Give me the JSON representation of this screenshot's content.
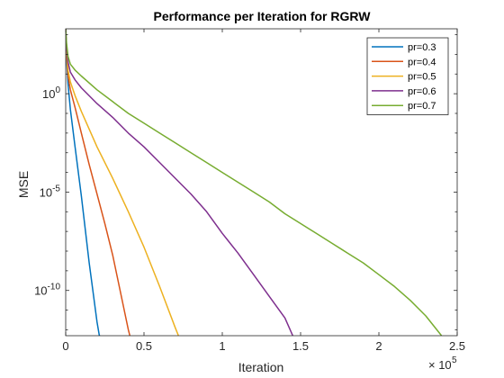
{
  "chart_data": {
    "type": "line",
    "title": "Performance per Iteration for RGRW",
    "xlabel": "Iteration",
    "ylabel": "MSE",
    "x_exponent_label": "× 10",
    "x_exponent_power": "5",
    "xlim": [
      0,
      250000
    ],
    "ylim_log10": [
      -12.3,
      3.3
    ],
    "yscale": "log",
    "grid": false,
    "legend_position": "top-right",
    "x_ticks": [
      {
        "value": 0,
        "label": "0"
      },
      {
        "value": 50000,
        "label": "0.5"
      },
      {
        "value": 100000,
        "label": "1"
      },
      {
        "value": 150000,
        "label": "1.5"
      },
      {
        "value": 200000,
        "label": "2"
      },
      {
        "value": 250000,
        "label": "2.5"
      }
    ],
    "y_ticks": [
      {
        "log10": 0,
        "base": "10",
        "exp": "0"
      },
      {
        "log10": -5,
        "base": "10",
        "exp": "-5"
      },
      {
        "log10": -10,
        "base": "10",
        "exp": "-10"
      }
    ],
    "series": [
      {
        "name": "pr=0.3",
        "color": "#0072BD",
        "x": [
          0,
          500,
          1500,
          3000,
          6000,
          10000,
          15000,
          20000,
          21500,
          22000
        ],
        "log10_y": [
          3.3,
          1.8,
          0.5,
          -0.8,
          -2.7,
          -5.2,
          -8.6,
          -11.6,
          -12.3,
          -12.3
        ]
      },
      {
        "name": "pr=0.4",
        "color": "#D95319",
        "x": [
          0,
          500,
          1500,
          3000,
          6000,
          10000,
          15000,
          20000,
          25000,
          30000,
          35000,
          40000,
          41000
        ],
        "log10_y": [
          3.3,
          2.0,
          0.9,
          0.2,
          -0.7,
          -2.0,
          -3.6,
          -5.1,
          -6.6,
          -8.2,
          -10.1,
          -12.0,
          -12.3
        ]
      },
      {
        "name": "pr=0.5",
        "color": "#EDB120",
        "x": [
          0,
          500,
          1500,
          3000,
          6000,
          10000,
          20000,
          30000,
          40000,
          50000,
          60000,
          70000,
          72000
        ],
        "log10_y": [
          3.3,
          2.2,
          1.2,
          0.6,
          -0.1,
          -0.9,
          -2.7,
          -4.3,
          -6.0,
          -7.8,
          -9.8,
          -11.9,
          -12.3
        ]
      },
      {
        "name": "pr=0.6",
        "color": "#7E2F8E",
        "x": [
          0,
          500,
          1500,
          3000,
          6000,
          10000,
          20000,
          30000,
          40000,
          50000,
          60000,
          70000,
          80000,
          90000,
          100000,
          110000,
          120000,
          130000,
          140000,
          145000
        ],
        "log10_y": [
          3.3,
          2.4,
          1.6,
          1.1,
          0.7,
          0.3,
          -0.5,
          -1.2,
          -2.0,
          -2.7,
          -3.5,
          -4.3,
          -5.1,
          -6.0,
          -7.1,
          -8.1,
          -9.2,
          -10.3,
          -11.4,
          -12.3
        ]
      },
      {
        "name": "pr=0.7",
        "color": "#77AC30",
        "x": [
          0,
          500,
          1500,
          3000,
          6000,
          10000,
          20000,
          30000,
          40000,
          50000,
          60000,
          70000,
          80000,
          90000,
          100000,
          110000,
          120000,
          130000,
          140000,
          150000,
          160000,
          170000,
          180000,
          190000,
          200000,
          210000,
          220000,
          230000,
          240000
        ],
        "log10_y": [
          3.3,
          2.6,
          1.9,
          1.5,
          1.2,
          0.9,
          0.2,
          -0.4,
          -1.0,
          -1.5,
          -2.0,
          -2.5,
          -3.0,
          -3.5,
          -4.0,
          -4.5,
          -5.0,
          -5.5,
          -6.1,
          -6.6,
          -7.1,
          -7.6,
          -8.1,
          -8.6,
          -9.2,
          -9.8,
          -10.5,
          -11.3,
          -12.3
        ]
      }
    ]
  }
}
